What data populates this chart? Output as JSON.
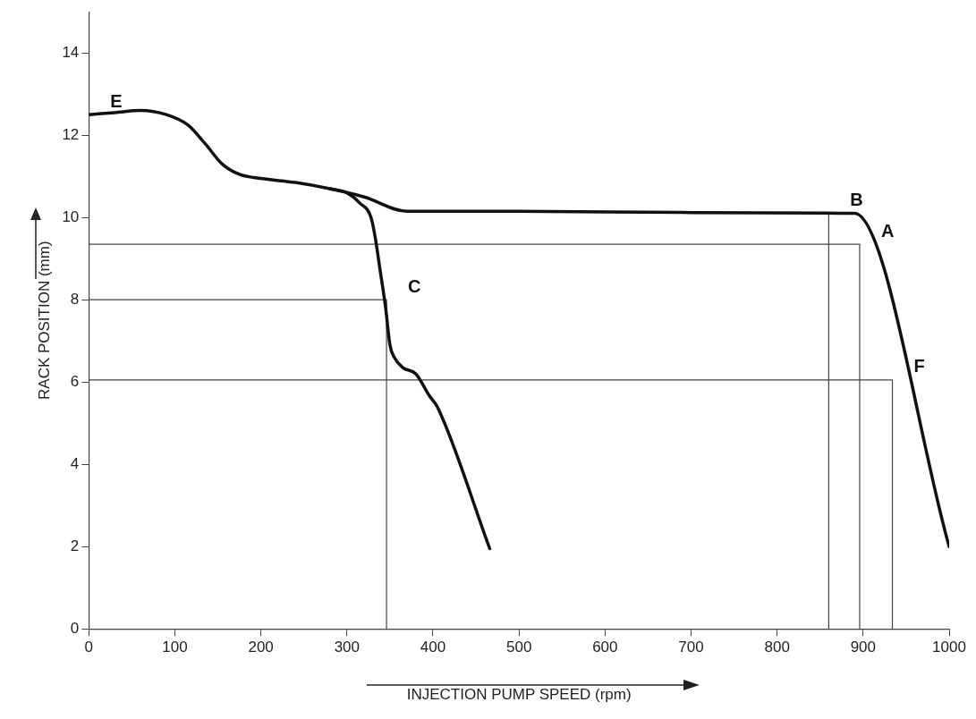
{
  "chart_data": {
    "type": "line",
    "xlabel": "INJECTION PUMP SPEED (rpm)",
    "ylabel": "RACK POSITION (mm)",
    "xlim": [
      0,
      1000
    ],
    "ylim": [
      0,
      15
    ],
    "xticks": [
      0,
      100,
      200,
      300,
      400,
      500,
      600,
      700,
      800,
      900,
      1000
    ],
    "yticks": [
      0,
      2,
      4,
      6,
      8,
      10,
      12,
      14
    ],
    "grid": false,
    "legend": false,
    "marker": "none",
    "line_style": "solid",
    "series": [
      {
        "color": "#111111",
        "x": [
          0,
          30,
          60,
          90,
          115,
          135,
          155,
          175,
          200,
          240,
          280,
          320,
          370,
          500,
          700,
          890,
          1000
        ],
        "values": [
          12.5,
          12.55,
          12.6,
          12.5,
          12.25,
          11.8,
          11.3,
          11.05,
          10.95,
          10.85,
          10.7,
          10.5,
          10.15,
          10.15,
          10.12,
          10.1,
          2.0
        ]
      },
      {
        "color": "#111111",
        "x": [
          280,
          300,
          315,
          328,
          333,
          338,
          345,
          350,
          355,
          365,
          380,
          396,
          405,
          466
        ],
        "values": [
          10.7,
          10.6,
          10.35,
          10.0,
          9.5,
          8.8,
          7.8,
          6.9,
          6.6,
          6.35,
          6.2,
          5.66,
          5.4,
          1.95
        ]
      },
      {
        "color": "#444444",
        "x": [
          0,
          346,
          346
        ],
        "values": [
          8.0,
          8.0,
          0
        ]
      },
      {
        "color": "#444444",
        "x": [
          860,
          860
        ],
        "values": [
          10.1,
          0
        ]
      },
      {
        "color": "#444444",
        "x": [
          0,
          896,
          896
        ],
        "values": [
          9.35,
          9.35,
          0
        ]
      },
      {
        "color": "#444444",
        "x": [
          0,
          934,
          934
        ],
        "values": [
          6.05,
          6.05,
          0
        ]
      }
    ],
    "annotations": [
      {
        "text": "E",
        "x": 0,
        "y": 12.5
      },
      {
        "text": "B",
        "x": 860,
        "y": 10.1
      },
      {
        "text": "A",
        "x": 896,
        "y": 9.35
      },
      {
        "text": "C",
        "x": 346,
        "y": 8.0
      },
      {
        "text": "F",
        "x": 934,
        "y": 6.05
      }
    ]
  }
}
